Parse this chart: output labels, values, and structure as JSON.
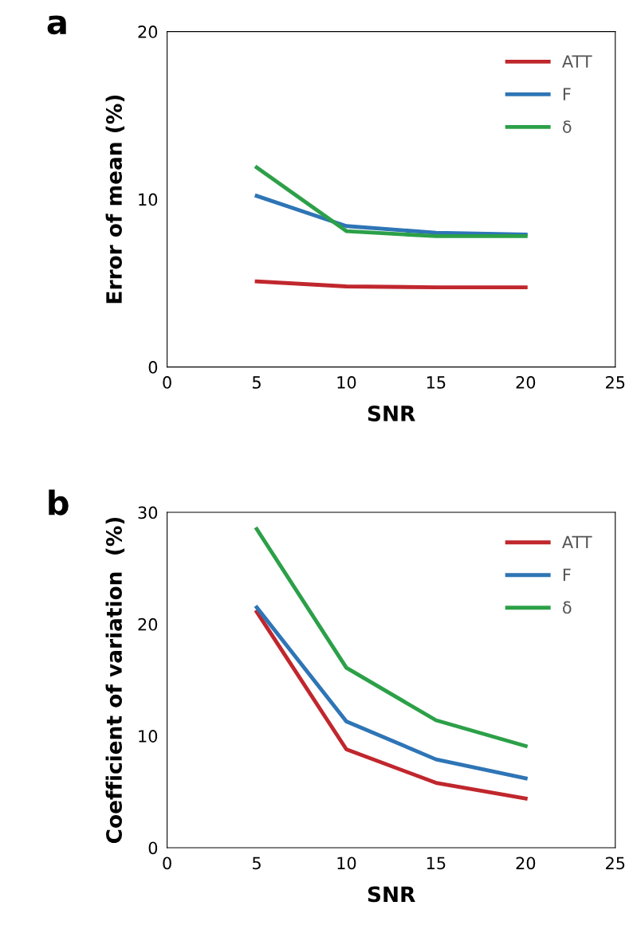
{
  "chart_data": [
    {
      "type": "line",
      "title": "a",
      "xlabel": "SNR",
      "ylabel": "Error of mean (%)",
      "x": [
        5,
        10,
        15,
        20
      ],
      "series": [
        {
          "name": "ATT",
          "color": "#c0272d",
          "values": [
            5.1,
            4.8,
            4.75,
            4.75
          ]
        },
        {
          "name": "F",
          "color": "#2e75b6",
          "values": [
            10.2,
            8.4,
            8.0,
            7.9
          ]
        },
        {
          "name": "δ",
          "color": "#2ca048",
          "values": [
            11.9,
            8.1,
            7.8,
            7.8
          ]
        }
      ],
      "xlim": [
        0,
        25
      ],
      "xticks": [
        0,
        5,
        10,
        15,
        20,
        25
      ],
      "ylim": [
        0,
        20
      ],
      "yticks": [
        0,
        10,
        20
      ],
      "legend": "top right",
      "grid": false,
      "marker": "none",
      "line_style": "solid"
    },
    {
      "type": "line",
      "title": "b",
      "xlabel": "SNR",
      "ylabel": "Coefficient of variation  (%)",
      "x": [
        5,
        10,
        15,
        20
      ],
      "series": [
        {
          "name": "ATT",
          "color": "#c0272d",
          "values": [
            21.1,
            8.8,
            5.8,
            4.4
          ]
        },
        {
          "name": "F",
          "color": "#2e75b6",
          "values": [
            21.5,
            11.3,
            7.9,
            6.2
          ]
        },
        {
          "name": "δ",
          "color": "#2ca048",
          "values": [
            28.5,
            16.1,
            11.4,
            9.1
          ]
        }
      ],
      "xlim": [
        0,
        25
      ],
      "xticks": [
        0,
        5,
        10,
        15,
        20,
        25
      ],
      "ylim": [
        0,
        30
      ],
      "yticks": [
        0,
        10,
        20,
        30
      ],
      "legend": "top right",
      "grid": false,
      "marker": "none",
      "line_style": "solid"
    }
  ]
}
